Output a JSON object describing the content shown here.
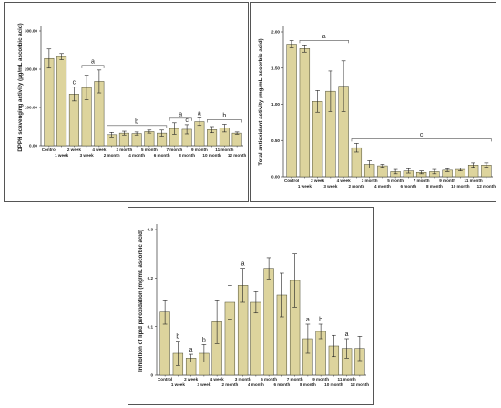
{
  "colors": {
    "bar": "#ddd49d",
    "bar_stroke": "#4a4a35",
    "axis": "#333333",
    "bracket": "#555555"
  },
  "chart_data": [
    {
      "type": "bar",
      "ylabel": "DPPH scavenging activity (µg/mL ascorbic acid)",
      "ylim": [
        0,
        300
      ],
      "yticks": [
        0,
        100,
        200,
        300
      ],
      "ytick_labels": [
        "0.00",
        "100.00",
        "200.00",
        "300.00"
      ],
      "categories": [
        "Control",
        "1 week",
        "2 week",
        "3 week",
        "4 week",
        "2 month",
        "3 month",
        "4 month",
        "5 month",
        "6 month",
        "7 month",
        "8 month",
        "9 month",
        "10 month",
        "11 month",
        "12 month"
      ],
      "values": [
        228,
        233,
        135,
        152,
        168,
        29,
        33,
        32,
        37,
        33,
        45,
        43,
        63,
        42,
        46,
        33
      ],
      "errors": [
        25,
        8,
        18,
        32,
        30,
        6,
        5,
        4,
        4,
        8,
        15,
        12,
        10,
        8,
        10,
        3
      ],
      "annotations": [
        {
          "text": "c",
          "bar": 2
        },
        {
          "text": "a",
          "bracket": [
            3,
            4
          ]
        },
        {
          "text": "b",
          "bracket": [
            5,
            9
          ]
        },
        {
          "text": "a",
          "bracket": [
            10,
            11
          ]
        },
        {
          "text": "c",
          "bar": 11
        },
        {
          "text": "a",
          "bar": 12
        },
        {
          "text": "b",
          "bracket": [
            13,
            15
          ]
        }
      ]
    },
    {
      "type": "bar",
      "ylabel": "Total antioxidant activity (mg/mL ascorbic acid)",
      "ylim": [
        0,
        2.0
      ],
      "yticks": [
        0,
        0.5,
        1.0,
        1.5,
        2.0
      ],
      "ytick_labels": [
        "0.00",
        "0.50",
        "1.00",
        "1.50",
        "2.00"
      ],
      "categories": [
        "Control",
        "1 week",
        "2 week",
        "3 week",
        "4 week",
        "2 month",
        "3 month",
        "4 month",
        "5 month",
        "6 month",
        "7 month",
        "8 month",
        "9 month",
        "10 month",
        "11 month",
        "12 month"
      ],
      "values": [
        1.83,
        1.77,
        1.04,
        1.18,
        1.25,
        0.4,
        0.17,
        0.15,
        0.07,
        0.08,
        0.06,
        0.07,
        0.09,
        0.1,
        0.16,
        0.16
      ],
      "errors": [
        0.05,
        0.05,
        0.15,
        0.28,
        0.35,
        0.06,
        0.05,
        0.02,
        0.03,
        0.03,
        0.02,
        0.03,
        0.02,
        0.02,
        0.03,
        0.03
      ],
      "annotations": [
        {
          "text": "a",
          "bracket": [
            1,
            4
          ]
        },
        {
          "text": "c",
          "bracket": [
            5,
            15
          ]
        }
      ]
    },
    {
      "type": "bar",
      "ylabel": "Inhibition of lipid peroxidation (mg/mL ascorbic acid)",
      "ylim": [
        0,
        0.3
      ],
      "yticks": [
        0,
        0.1,
        0.2,
        0.3
      ],
      "ytick_labels": [
        "0",
        "0.1",
        "0.2",
        "0.3"
      ],
      "categories": [
        "Control",
        "1 week",
        "2 week",
        "3 week",
        "4 week",
        "2 month",
        "3 month",
        "4 month",
        "5 month",
        "6 month",
        "7 month",
        "8 month",
        "9 month",
        "10 month",
        "11 month",
        "12 month"
      ],
      "values": [
        0.13,
        0.045,
        0.035,
        0.045,
        0.11,
        0.15,
        0.185,
        0.15,
        0.22,
        0.165,
        0.195,
        0.075,
        0.09,
        0.06,
        0.055,
        0.055
      ],
      "errors": [
        0.025,
        0.025,
        0.008,
        0.018,
        0.045,
        0.035,
        0.035,
        0.022,
        0.022,
        0.045,
        0.055,
        0.03,
        0.015,
        0.022,
        0.02,
        0.025
      ],
      "annotations": [
        {
          "text": "b",
          "bar": 1
        },
        {
          "text": "a",
          "bar": 2
        },
        {
          "text": "b",
          "bar": 3
        },
        {
          "text": "a",
          "bar": 6
        },
        {
          "text": "a",
          "bar": 11
        },
        {
          "text": "b",
          "bar": 12
        },
        {
          "text": "a",
          "bar": 14
        }
      ]
    }
  ]
}
